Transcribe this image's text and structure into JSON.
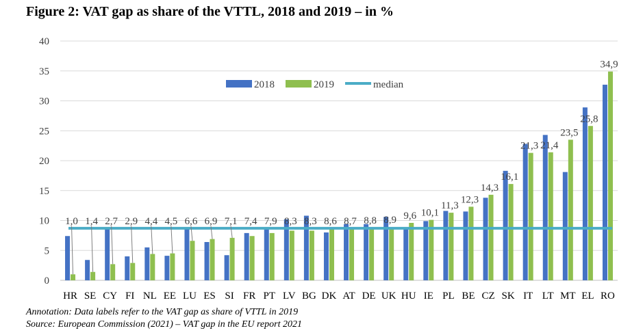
{
  "chart_data": {
    "type": "bar",
    "title": "Figure 2: VAT gap as share of the VTTL, 2018 and 2019 – in %",
    "categories": [
      "HR",
      "SE",
      "CY",
      "FI",
      "NL",
      "EE",
      "LU",
      "ES",
      "SI",
      "FR",
      "PT",
      "LV",
      "BG",
      "DK",
      "AT",
      "DE",
      "UK",
      "HU",
      "IE",
      "PL",
      "BE",
      "CZ",
      "SK",
      "IT",
      "LT",
      "MT",
      "EL",
      "RO"
    ],
    "series": [
      {
        "name": "2018",
        "color": "#4472C4",
        "values": [
          7.4,
          3.4,
          8.6,
          4.0,
          5.5,
          4.1,
          8.6,
          6.4,
          4.2,
          7.9,
          8.5,
          10.2,
          10.8,
          8.0,
          9.4,
          9.4,
          10.6,
          8.6,
          9.9,
          11.6,
          11.5,
          13.8,
          18.3,
          22.8,
          24.3,
          18.1,
          28.9,
          32.7
        ]
      },
      {
        "name": "2019",
        "color": "#8FBF4F",
        "values": [
          1.0,
          1.4,
          2.7,
          2.9,
          4.4,
          4.5,
          6.6,
          6.9,
          7.1,
          7.4,
          7.9,
          8.3,
          8.3,
          8.6,
          8.7,
          8.8,
          8.9,
          9.6,
          10.1,
          11.3,
          12.3,
          14.3,
          16.1,
          21.3,
          21.4,
          23.5,
          25.8,
          34.9
        ]
      }
    ],
    "median": {
      "name": "median",
      "value": 8.7,
      "color": "#4BACC6"
    },
    "data_labels": [
      "1,0",
      "1,4",
      "2,7",
      "2,9",
      "4,4",
      "4,5",
      "6,6",
      "6,9",
      "7,1",
      "7,4",
      "7,9",
      "8,3",
      "8,3",
      "8,6",
      "8,7",
      "8,8",
      "8,9",
      "9,6",
      "10,1",
      "11,3",
      "12,3",
      "14,3",
      "16,1",
      "21,3",
      "21,4",
      "23,5",
      "25,8",
      "34,9"
    ],
    "yticks": [
      "0",
      "5",
      "10",
      "15",
      "20",
      "25",
      "30",
      "35",
      "40"
    ],
    "ylim": [
      0,
      40
    ],
    "grid": true,
    "legend_position": "top-center"
  },
  "annotation": "Annotation: Data labels refer to the VAT gap as share of VTTL in 2019",
  "source": "Source: European Commission (2021) – VAT gap in the EU report 2021"
}
